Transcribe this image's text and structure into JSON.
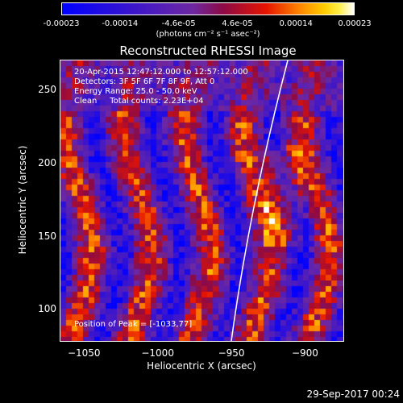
{
  "chart_data": {
    "type": "heatmap",
    "title": "Reconstructed RHESSI Image",
    "xlabel": "Heliocentric X (arcsec)",
    "ylabel": "Heliocentric Y (arcsec)",
    "xlim": [
      -1066,
      -874
    ],
    "ylim": [
      78,
      270
    ],
    "xticks": [
      -1050,
      -1000,
      -950,
      -900
    ],
    "yticks": [
      100,
      150,
      200,
      250
    ],
    "colorbar": {
      "range": [
        -0.00023,
        0.00023
      ],
      "ticks": [
        "-0.00023",
        "-0.00014",
        "-4.6e-05",
        "4.6e-05",
        "0.00014",
        "0.00023"
      ],
      "unit_label": "(photons cm⁻² s⁻¹ asec⁻²)"
    },
    "annotations": {
      "time": "20-Apr-2015 12:47:12.000 to 12:57:12.000",
      "detectors": "Detectors: 3F 5F 6F 7F 8F 9F, Att 0",
      "energy": "Energy Range: 25.0 - 50.0 keV",
      "method": "Clean     Total counts: 2.23E+04",
      "peak": "Position of Peak = [-1033,77]"
    },
    "grid": false
  },
  "footer": {
    "timestamp": "29-Sep-2017 00:24"
  }
}
